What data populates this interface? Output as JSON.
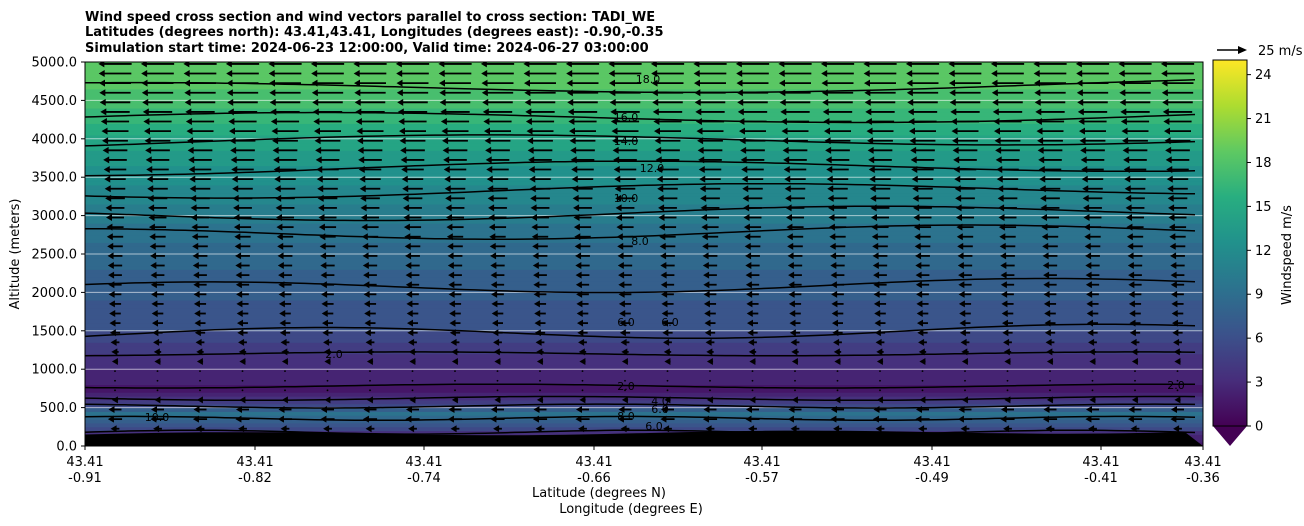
{
  "chart_data": {
    "type": "heatmap",
    "title_lines": [
      "Wind speed cross section and wind vectors parallel to cross section: TADI_WE",
      "Latitudes (degrees north): 43.41,43.41, Longitudes (degrees east): -0.90,-0.35",
      "Simulation start time: 2024-06-23 12:00:00, Valid time: 2024-06-27 03:00:00"
    ],
    "ylabel": "Altitude (meters)",
    "xlabel_lines": [
      "Latitude (degrees N)",
      "Longitude (degrees E)"
    ],
    "ylim": [
      0,
      5000
    ],
    "y_ticks": [
      "0.0",
      "500.0",
      "1000.0",
      "1500.0",
      "2000.0",
      "2500.0",
      "3000.0",
      "3500.0",
      "4000.0",
      "4500.0",
      "5000.0"
    ],
    "x_ticks": [
      {
        "lat": "43.41",
        "lon": "-0.91"
      },
      {
        "lat": "43.41",
        "lon": "-0.82"
      },
      {
        "lat": "43.41",
        "lon": "-0.74"
      },
      {
        "lat": "43.41",
        "lon": "-0.66"
      },
      {
        "lat": "43.41",
        "lon": "-0.57"
      },
      {
        "lat": "43.41",
        "lon": "-0.49"
      },
      {
        "lat": "43.41",
        "lon": "-0.41"
      },
      {
        "lat": "43.41",
        "lon": "-0.36"
      }
    ],
    "colorbar": {
      "label": "Windspeed m/s",
      "range": [
        0,
        25
      ],
      "ticks": [
        "0",
        "3",
        "6",
        "9",
        "12",
        "15",
        "18",
        "21",
        "24"
      ],
      "colormap": "viridis",
      "extend": "min"
    },
    "quiver_key": "25 m/s",
    "horizontal_gridlines": true,
    "wind_profile": [
      {
        "altitude": 0,
        "speed": 1.0
      },
      {
        "altitude": 150,
        "speed": 3.0
      },
      {
        "altitude": 300,
        "speed": 7.0
      },
      {
        "altitude": 420,
        "speed": 9.5
      },
      {
        "altitude": 550,
        "speed": 4.5
      },
      {
        "altitude": 700,
        "speed": 1.5
      },
      {
        "altitude": 900,
        "speed": 2.5
      },
      {
        "altitude": 1200,
        "speed": 4.0
      },
      {
        "altitude": 1500,
        "speed": 6.0
      },
      {
        "altitude": 2000,
        "speed": 7.3
      },
      {
        "altitude": 2500,
        "speed": 8.5
      },
      {
        "altitude": 3000,
        "speed": 10.3
      },
      {
        "altitude": 3500,
        "speed": 12.3
      },
      {
        "altitude": 4000,
        "speed": 14.8
      },
      {
        "altitude": 4500,
        "speed": 17.5
      },
      {
        "altitude": 5000,
        "speed": 19.0
      }
    ],
    "contour_labels": [
      "18.0",
      "16.0",
      "14.0",
      "12.0",
      "10.0",
      "8.0",
      "6.0",
      "6.0",
      "2.0",
      "2.0",
      "4.0",
      "6.0",
      "8.0",
      "6.0",
      "10.0",
      "2.0"
    ]
  }
}
